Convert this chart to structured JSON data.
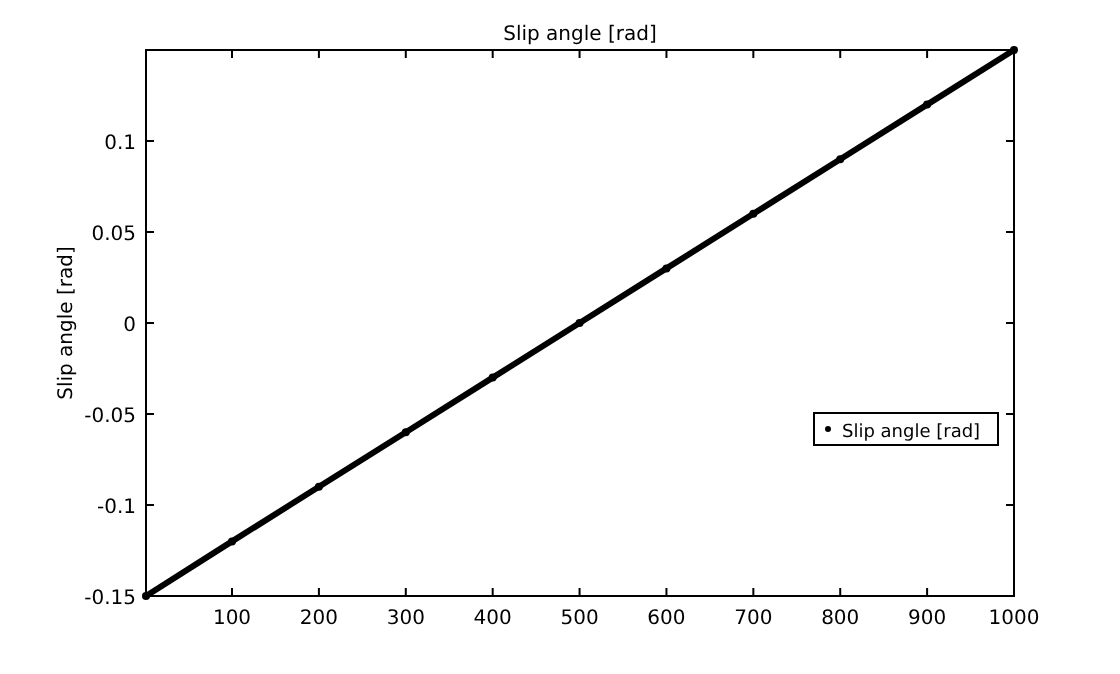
{
  "chart_data": {
    "type": "line",
    "title": "Slip angle [rad]",
    "ylabel": "Slip angle [rad]",
    "x": [
      1,
      100,
      200,
      300,
      400,
      500,
      600,
      700,
      800,
      900,
      1000
    ],
    "series": [
      {
        "name": "Slip angle [rad]",
        "color": "#000000",
        "values": [
          -0.15,
          -0.12,
          -0.09,
          -0.06,
          -0.03,
          0,
          0.03,
          0.06,
          0.09,
          0.12,
          0.15
        ]
      }
    ],
    "xlim": [
      1,
      1000
    ],
    "xticks": [
      100,
      200,
      300,
      400,
      500,
      600,
      700,
      800,
      900,
      1000
    ],
    "ylim": [
      -0.15,
      0.15
    ],
    "yticks": [
      -0.15,
      -0.1,
      -0.05,
      0,
      0.05,
      0.1
    ],
    "grid": false,
    "legend": "right",
    "marker": "circle",
    "line_style": "solid"
  }
}
